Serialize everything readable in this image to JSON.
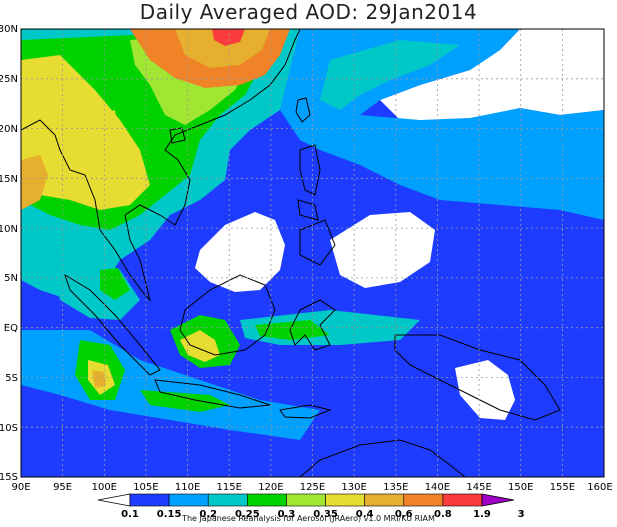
{
  "title": "Daily Averaged AOD: 29Jan2014",
  "credit": "The Japanese Reanalysis for Aerosol (JRAero) v1.0 MRI/KU RIAM",
  "axes": {
    "x_ticks": [
      "90E",
      "95E",
      "100E",
      "105E",
      "110E",
      "115E",
      "120E",
      "125E",
      "130E",
      "135E",
      "140E",
      "145E",
      "150E",
      "155E",
      "160E"
    ],
    "y_ticks": [
      "30N",
      "25N",
      "20N",
      "15N",
      "10N",
      "5N",
      "EQ",
      "5S",
      "10S",
      "15S"
    ],
    "lon_range": [
      90,
      160
    ],
    "lat_range": [
      -15,
      30
    ]
  },
  "colorbar": {
    "levels": [
      "0.1",
      "0.15",
      "0.2",
      "0.25",
      "0.3",
      "0.35",
      "0.4",
      "0.6",
      "0.8",
      "1.9",
      "3"
    ],
    "colors": [
      "#ffffff",
      "#1e3cff",
      "#00a0ff",
      "#00c8c8",
      "#00d200",
      "#a0e632",
      "#e6dc32",
      "#e6af2d",
      "#f08228",
      "#fa3c3c",
      "#a000c8"
    ]
  }
}
